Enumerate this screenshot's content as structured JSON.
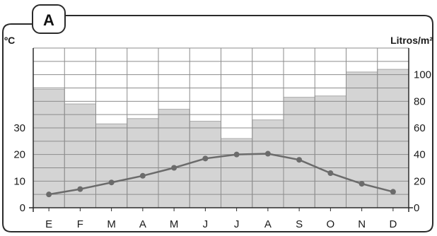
{
  "badge": {
    "label": "A"
  },
  "chart_data": {
    "type": "bar",
    "categories": [
      "E",
      "F",
      "M",
      "A",
      "M",
      "J",
      "J",
      "A",
      "S",
      "O",
      "N",
      "D"
    ],
    "y_left": {
      "unit": "ºC",
      "ticks": [
        "0",
        "10",
        "20",
        "30"
      ],
      "range": [
        0,
        60
      ]
    },
    "y_right": {
      "unit": "Litros/m²",
      "ticks": [
        "0",
        "20",
        "40",
        "60",
        "80",
        "100"
      ],
      "range": [
        0,
        120
      ]
    },
    "series": [
      {
        "type": "bar",
        "axis": "right",
        "values": [
          89,
          78,
          63,
          67,
          74,
          65,
          52,
          66,
          83,
          84,
          102,
          104
        ]
      },
      {
        "type": "line",
        "axis": "left",
        "values": [
          5,
          7,
          9.5,
          12,
          15,
          18.5,
          20,
          20.3,
          18,
          13,
          9,
          6
        ]
      }
    ],
    "grid": true,
    "colors": {
      "bar": "#d4d4d4",
      "bar_edge": "#a9a9a9",
      "line": "#6b6b6b",
      "grid": "#8c8c8c",
      "frame": "#2b2b2b"
    }
  }
}
